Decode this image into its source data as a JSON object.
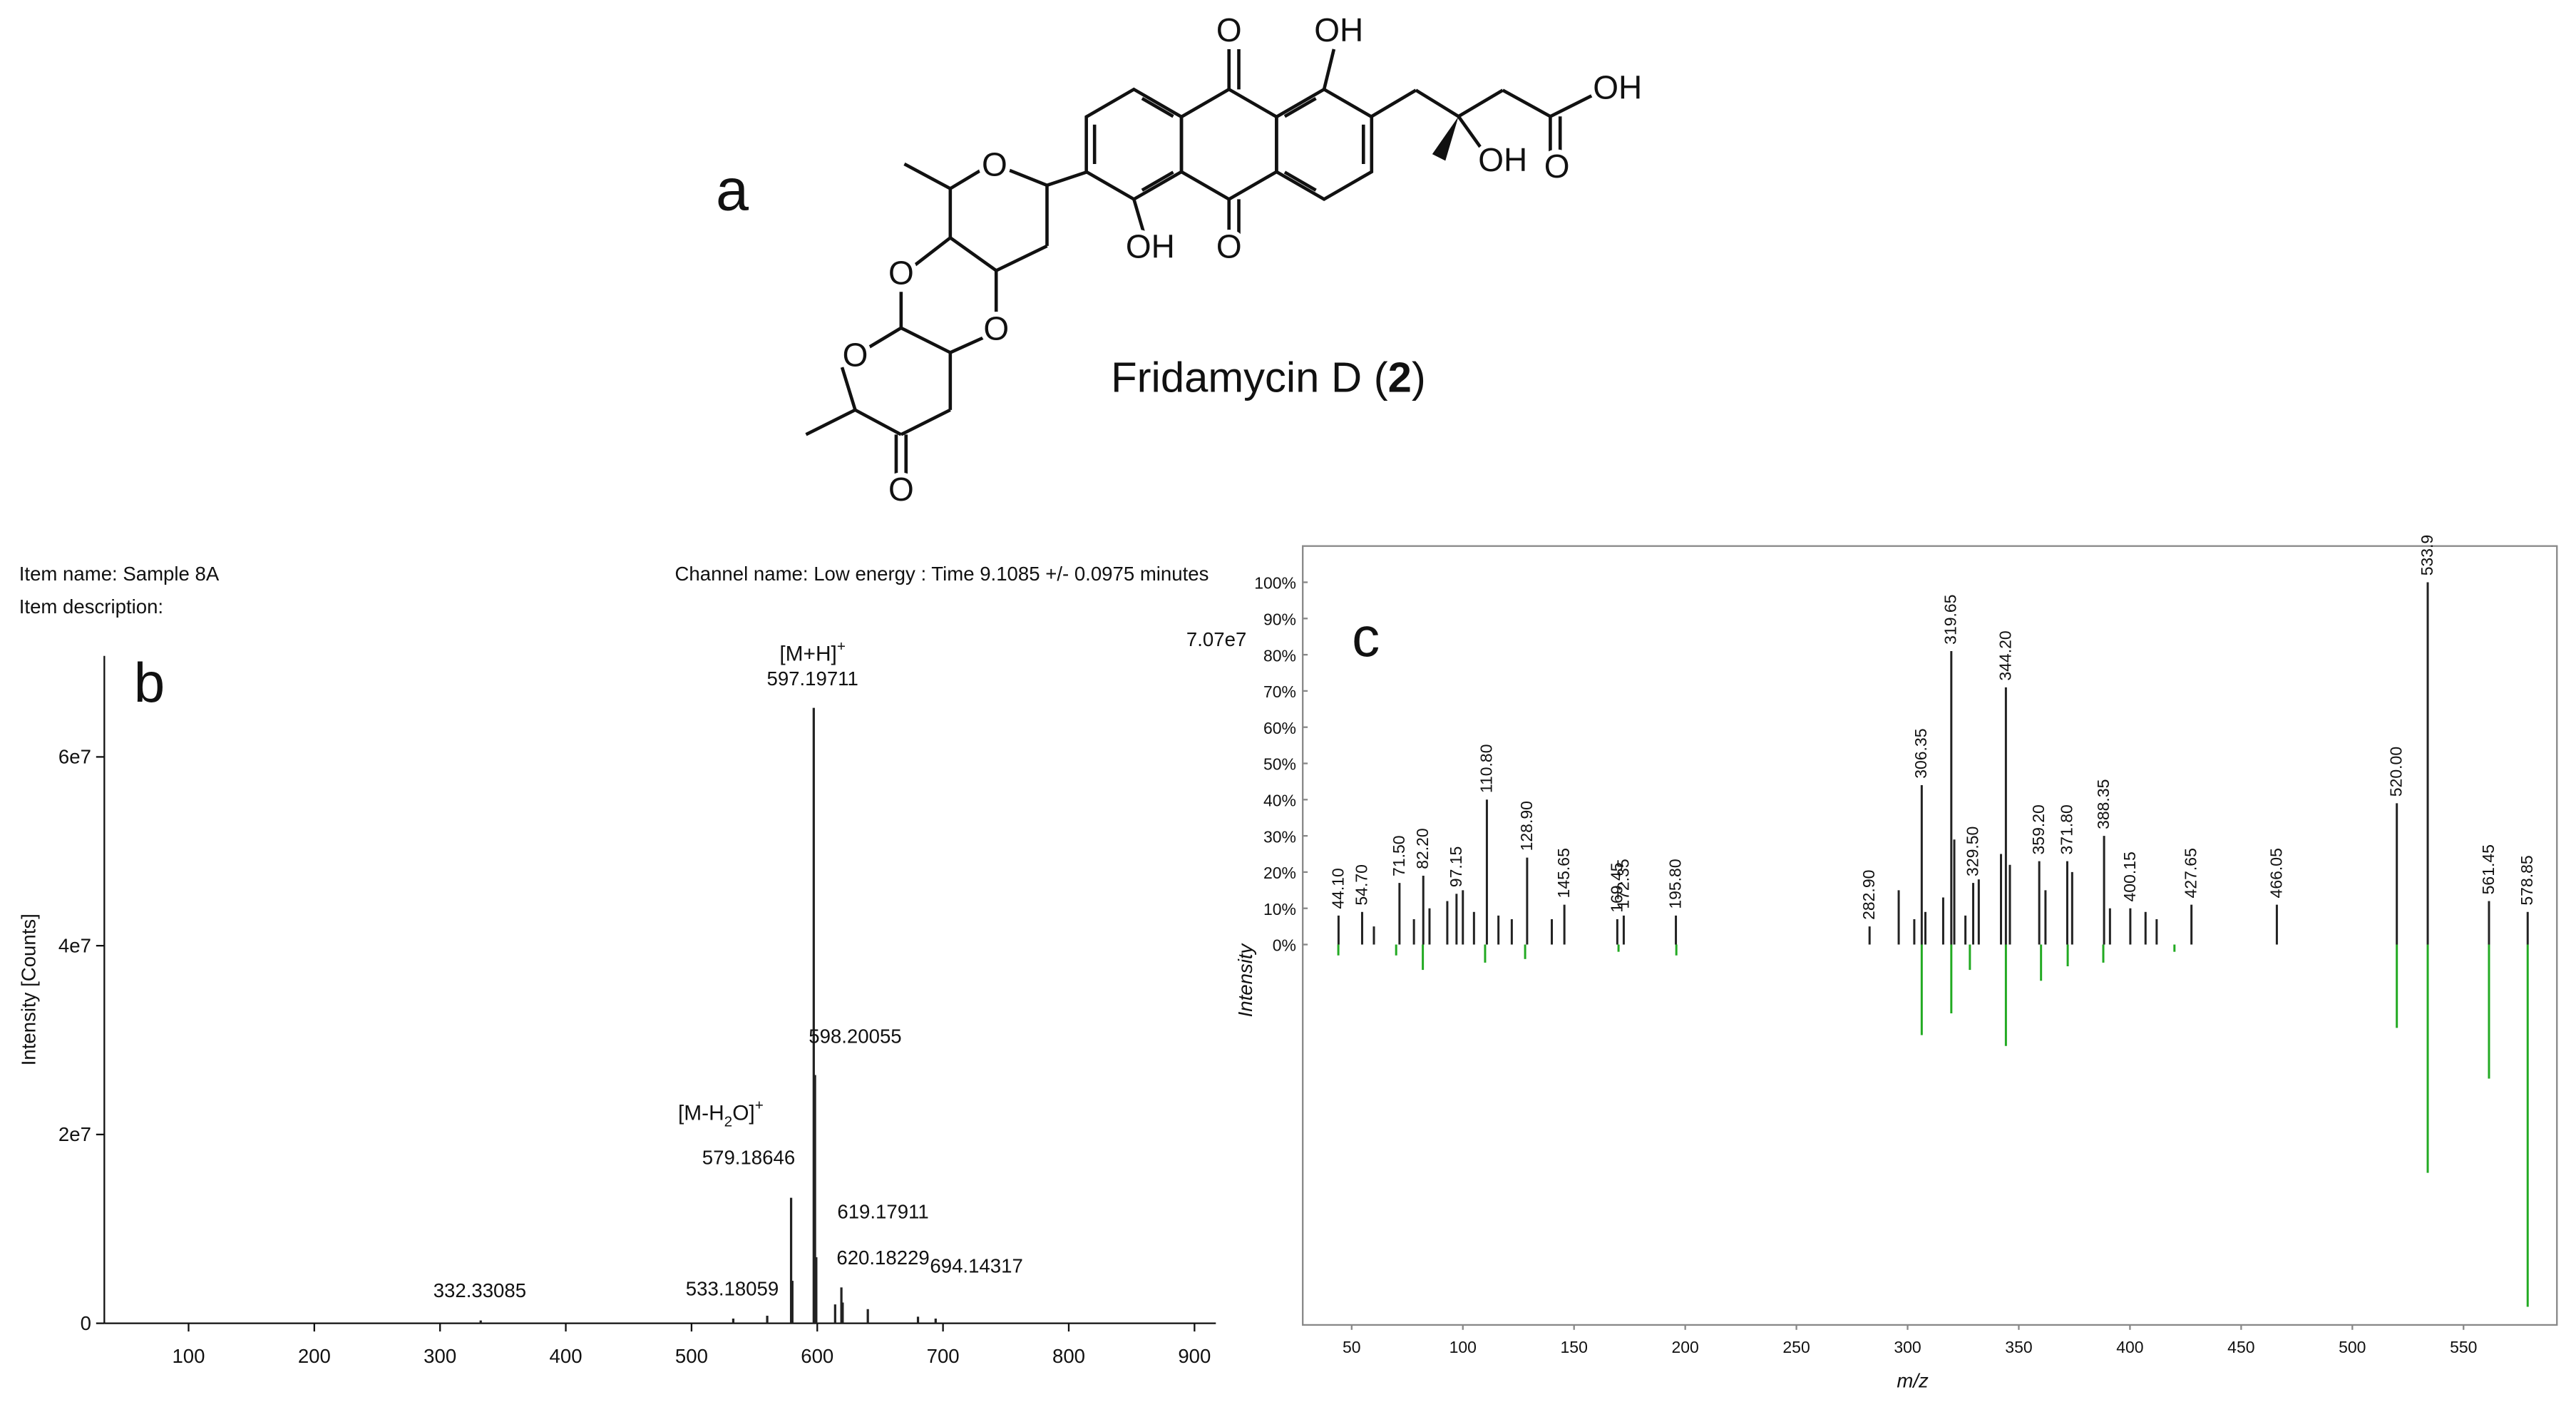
{
  "panel_a": {
    "label": "a",
    "name_prefix": "Fridamycin D (",
    "number": "2",
    "name_suffix": ")",
    "atoms": [
      "O",
      "OH",
      "OH",
      "OH",
      "O",
      "OH",
      "O",
      "O",
      "O",
      "O",
      "O",
      "O"
    ]
  },
  "chart_data": [
    {
      "type": "bar",
      "panel_label": "b",
      "item_name": "Item name: Sample 8A",
      "item_description": "Item description:",
      "channel": "Channel name: Low energy : Time 9.1085 +/- 0.0975 minutes",
      "max_intensity_label": "7.07e7",
      "y_label": "Intensity [Counts]",
      "annotations": [
        {
          "parts": [
            "[M+H]",
            "+"
          ]
        },
        {
          "parts": [
            "[M-H",
            "2",
            "O]",
            "+"
          ]
        }
      ],
      "xlim": [
        33,
        917
      ],
      "xticks": [
        100,
        200,
        300,
        400,
        500,
        600,
        700,
        800,
        900
      ],
      "ylim": [
        0,
        70700000
      ],
      "yticks": [
        0,
        {
          "value": 20000000,
          "label": "2e7"
        },
        {
          "value": 40000000,
          "label": "4e7"
        },
        {
          "value": 60000000,
          "label": "6e7"
        }
      ],
      "series": [
        {
          "color": "#222222",
          "x": [
            332.33085,
            533.18059,
            560.2,
            579.18646,
            580.19,
            597.19711,
            598.20055,
            599.2,
            614.2,
            619.17911,
            620.18229,
            640.2,
            680.1,
            694.14317
          ],
          "values": [
            300000,
            500000,
            800000,
            13300000,
            4500000,
            65200000,
            26300000,
            7000000,
            2000000,
            3800000,
            2200000,
            1500000,
            700000,
            500000
          ],
          "peak_labels": [
            "332.33085",
            "533.18059",
            null,
            "579.18646",
            null,
            "597.19711",
            "598.20055",
            null,
            null,
            "619.17911",
            "620.18229",
            null,
            null,
            "694.14317"
          ]
        }
      ]
    },
    {
      "type": "bar",
      "panel_label": "c",
      "x_label": "m/z",
      "y_label": "Intensity",
      "xlim": [
        28,
        592
      ],
      "xticks": [
        50,
        100,
        150,
        200,
        250,
        300,
        350,
        400,
        450,
        500,
        550
      ],
      "ylim": [
        -105,
        110
      ],
      "yticks": [
        {
          "value": 0,
          "label": "0%"
        },
        {
          "value": 10,
          "label": "10%"
        },
        {
          "value": 20,
          "label": "20%"
        },
        {
          "value": 30,
          "label": "30%"
        },
        {
          "value": 40,
          "label": "40%"
        },
        {
          "value": 50,
          "label": "50%"
        },
        {
          "value": 60,
          "label": "60%"
        },
        {
          "value": 70,
          "label": "70%"
        },
        {
          "value": 80,
          "label": "80%"
        },
        {
          "value": 90,
          "label": "90%"
        },
        {
          "value": 100,
          "label": "100%"
        }
      ],
      "series": [
        {
          "color": "#222222",
          "x": [
            44.1,
            54.7,
            60,
            71.5,
            78,
            82.2,
            85,
            93,
            97.15,
            100,
            105,
            110.8,
            116,
            122,
            128.9,
            140,
            145.65,
            169.45,
            172.35,
            195.8,
            282.9,
            296,
            303,
            306.35,
            308,
            316,
            319.65,
            321,
            326,
            329.5,
            332,
            342,
            344.2,
            346,
            359.2,
            362,
            371.8,
            374,
            388.35,
            391,
            400.15,
            407,
            412,
            427.65,
            466.05,
            520,
            533.9,
            561.45,
            578.85
          ],
          "values": [
            8,
            9,
            5,
            17,
            7,
            19,
            10,
            12,
            14,
            15,
            9,
            40,
            8,
            7,
            24,
            7,
            11,
            7,
            8,
            8,
            5,
            15,
            7,
            44,
            9,
            13,
            81,
            29,
            8,
            17,
            18,
            25,
            71,
            22,
            23,
            15,
            23,
            20,
            30,
            10,
            10,
            9,
            7,
            11,
            11,
            39,
            100,
            12,
            9
          ],
          "peak_labels": [
            "44.10",
            "54.70",
            null,
            "71.50",
            null,
            "82.20",
            null,
            null,
            "97.15",
            null,
            null,
            "110.80",
            null,
            null,
            "128.90",
            null,
            "145.65",
            "169.45",
            "172.35",
            "195.80",
            "282.90",
            null,
            null,
            "306.35",
            null,
            null,
            "319.65",
            null,
            null,
            "329.50",
            null,
            null,
            "344.20",
            null,
            "359.20",
            null,
            "371.80",
            null,
            "388.35",
            null,
            "400.15",
            null,
            null,
            "427.65",
            "466.05",
            "520.00",
            "533.9",
            "561.45",
            "578.85"
          ]
        },
        {
          "color": "#22aa22",
          "x": [
            44,
            70,
            82,
            110,
            128,
            170,
            196,
            306.35,
            319.65,
            328,
            344.2,
            360,
            372,
            388,
            420,
            520,
            533.9,
            561.45,
            578.85
          ],
          "values": [
            -3,
            -3,
            -7,
            -5,
            -4,
            -2,
            -3,
            -25,
            -19,
            -7,
            -28,
            -10,
            -6,
            -5,
            -2,
            -23,
            -63,
            -37,
            -100
          ]
        }
      ]
    }
  ]
}
